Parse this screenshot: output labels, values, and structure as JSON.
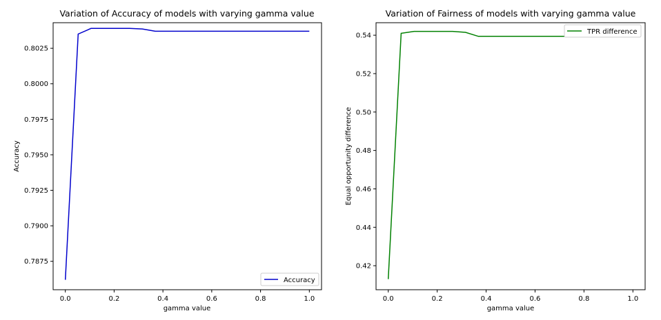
{
  "chart_data": [
    {
      "type": "line",
      "title": "Variation of Accuracy of models with varying gamma value",
      "xlabel": "gamma value",
      "ylabel": "Accuracy",
      "xlim": [
        -0.05,
        1.05
      ],
      "ylim": [
        0.7855,
        0.8043
      ],
      "xticks": [
        "0.0",
        "0.2",
        "0.4",
        "0.6",
        "0.8",
        "1.0"
      ],
      "xtick_values": [
        0.0,
        0.2,
        0.4,
        0.6,
        0.8,
        1.0
      ],
      "yticks": [
        "0.7875",
        "0.7900",
        "0.7925",
        "0.7950",
        "0.7975",
        "0.8000",
        "0.8025"
      ],
      "ytick_values": [
        0.7875,
        0.79,
        0.7925,
        0.795,
        0.7975,
        0.8,
        0.8025
      ],
      "legend": "lower right",
      "grid": false,
      "series": [
        {
          "name": "Accuracy",
          "color": "#0000cc",
          "x": [
            0.0,
            0.0526,
            0.1053,
            0.1579,
            0.2105,
            0.2632,
            0.3158,
            0.3684,
            0.4211,
            0.4737,
            0.5263,
            0.5789,
            0.6316,
            0.6842,
            0.7368,
            0.7895,
            0.8421,
            0.8947,
            0.9474,
            1.0
          ],
          "y": [
            0.7862,
            0.8035,
            0.8039,
            0.8039,
            0.8039,
            0.8039,
            0.80386,
            0.8037,
            0.8037,
            0.8037,
            0.8037,
            0.8037,
            0.8037,
            0.8037,
            0.8037,
            0.8037,
            0.8037,
            0.8037,
            0.8037,
            0.8037
          ]
        }
      ]
    },
    {
      "type": "line",
      "title": "Variation of Fairness of models with varying gamma value",
      "xlabel": "gamma value",
      "ylabel": "Equal opportunity difference",
      "xlim": [
        -0.05,
        1.05
      ],
      "ylim": [
        0.4075,
        0.5465
      ],
      "xticks": [
        "0.0",
        "0.2",
        "0.4",
        "0.6",
        "0.8",
        "1.0"
      ],
      "xtick_values": [
        0.0,
        0.2,
        0.4,
        0.6,
        0.8,
        1.0
      ],
      "yticks": [
        "0.42",
        "0.44",
        "0.46",
        "0.48",
        "0.50",
        "0.52",
        "0.54"
      ],
      "ytick_values": [
        0.42,
        0.44,
        0.46,
        0.48,
        0.5,
        0.52,
        0.54
      ],
      "legend": "upper right",
      "grid": false,
      "series": [
        {
          "name": "TPR difference",
          "color": "#008000",
          "x": [
            0.0,
            0.0526,
            0.1053,
            0.1579,
            0.2105,
            0.2632,
            0.3158,
            0.3684,
            0.4211,
            0.4737,
            0.5263,
            0.5789,
            0.6316,
            0.6842,
            0.7368,
            0.7895,
            0.8421,
            0.8947,
            0.9474,
            1.0
          ],
          "y": [
            0.413,
            0.541,
            0.542,
            0.542,
            0.542,
            0.542,
            0.5415,
            0.5394,
            0.5394,
            0.5394,
            0.5394,
            0.5394,
            0.5394,
            0.5394,
            0.5394,
            0.5394,
            0.5394,
            0.5394,
            0.5394,
            0.5394
          ]
        }
      ]
    }
  ]
}
